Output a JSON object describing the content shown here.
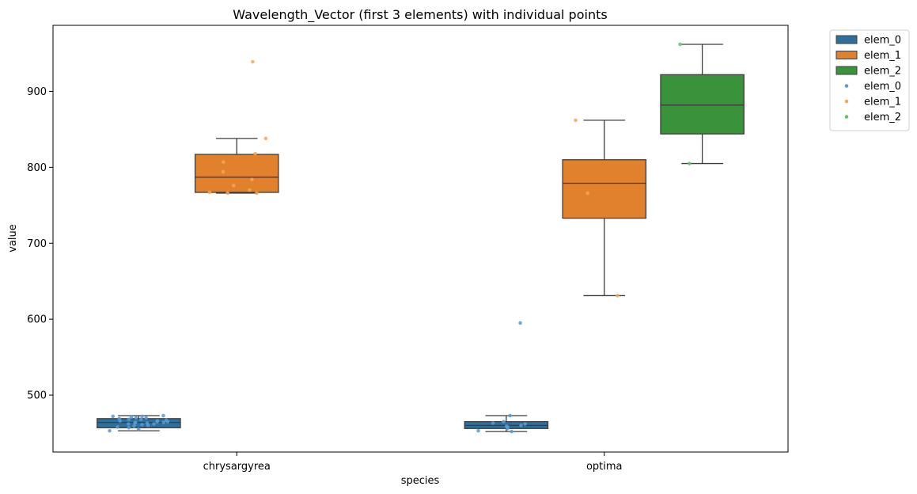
{
  "chart_data": {
    "type": "box",
    "title": "Wavelength_Vector (first 3 elements) with individual points",
    "xlabel": "species",
    "ylabel": "value",
    "categories": [
      "chrysargyrea",
      "optima"
    ],
    "ylim": [
      425,
      987
    ],
    "yticks": [
      500,
      600,
      700,
      800,
      900
    ],
    "grid": false,
    "legend_position": "outside-top-right",
    "series": [
      {
        "name": "elem_0",
        "color": "#2e6f9b",
        "point_color": "#5b9bd5",
        "boxes": [
          {
            "category": "chrysargyrea",
            "min": 453,
            "q1": 457,
            "median": 464,
            "q3": 469,
            "max": 473
          },
          {
            "category": "optima",
            "min": 452,
            "q1": 456,
            "median": 460,
            "q3": 465,
            "max": 473
          }
        ],
        "points": [
          {
            "category": "chrysargyrea",
            "values": [
              473,
              472,
              472,
              471,
              470,
              470,
              469,
              468,
              468,
              467,
              466,
              466,
              465,
              465,
              464,
              464,
              463,
              463,
              462,
              462,
              461,
              460,
              459,
              458,
              457,
              455,
              453
            ]
          },
          {
            "category": "optima",
            "values": [
              595,
              473,
              465,
              463,
              462,
              460,
              459,
              458,
              456,
              453,
              452
            ]
          }
        ]
      },
      {
        "name": "elem_1",
        "color": "#e1812c",
        "point_color": "#f5a65b",
        "boxes": [
          {
            "category": "chrysargyrea",
            "min": 766,
            "q1": 767,
            "median": 787,
            "q3": 817,
            "max": 838
          },
          {
            "category": "optima",
            "min": 631,
            "q1": 733,
            "median": 779,
            "q3": 810,
            "max": 862
          }
        ],
        "points": [
          {
            "category": "chrysargyrea",
            "values": [
              939,
              838,
              818,
              807,
              794,
              784,
              776,
              770,
              767,
              766,
              766
            ]
          },
          {
            "category": "optima",
            "values": [
              862,
              766,
              631
            ]
          }
        ]
      },
      {
        "name": "elem_2",
        "color": "#3a923a",
        "point_color": "#6abf69",
        "boxes": [
          {
            "category": "optima",
            "min": 805,
            "q1": 844,
            "median": 882,
            "q3": 922,
            "max": 962
          }
        ],
        "points": [
          {
            "category": "optima",
            "values": [
              962,
              805
            ]
          }
        ]
      }
    ]
  }
}
